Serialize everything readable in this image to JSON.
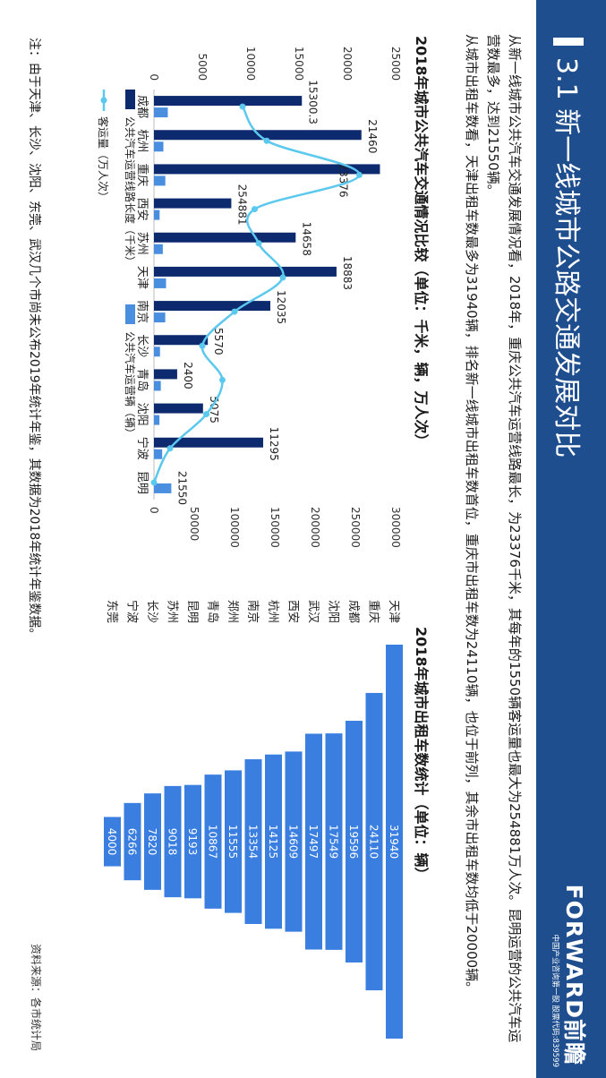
{
  "header": {
    "title": "3.1 新一线城市公路交通发展对比",
    "logo": "FORWARD前瞻",
    "logo_subtitle": "中国产业咨询第一股 股票代码:839599"
  },
  "paragraphs": [
    "从新一线城市公共汽车交通发展情况看，2018年，重庆公共汽车运营线路最长，为23376千米，其每年的1550辆客运量也最大为254881万人次。昆明运营的公共汽车运营数最多，达到21550辆。",
    "从城市出租车数看，天津出租车数最多为31940辆，排名新一线城市出租车数首位，重庆市出租车数为24110辆，也位于前列，其余市出租车数均低于20000辆。"
  ],
  "footnote": "注：由于天津、长沙、沈阳、东莞、武汉几个市尚未公布2019年统计年鉴，其数据为2018年统计年鉴数据。",
  "source": "资料来源：各市统计局",
  "colors": {
    "header_bg": "#1f4e8f",
    "bar_dark": "#0d2a6e",
    "bar_light": "#4a8ee0",
    "line": "#5bc8ee",
    "taxi_bar": "#3a7fe0"
  },
  "chart_data": [
    {
      "type": "bar",
      "title": "2018年城市公共汽车交通情况比较（单位：千米，辆，万人次）",
      "categories": [
        "成都",
        "杭州",
        "重庆",
        "西安",
        "苏州",
        "天津",
        "南京",
        "长沙",
        "青岛",
        "沈阳",
        "宁波",
        "昆明"
      ],
      "series": [
        {
          "name": "公共汽车运营线路长度（千米）",
          "axis": "left",
          "values": [
            15300.3,
            21460,
            23376,
            8000,
            14658,
            18883,
            12035,
            5570,
            2400,
            5075,
            11295,
            0
          ]
        },
        {
          "name": "公共汽车运营辆（辆）",
          "axis": "right",
          "values": [
            17200,
            11700,
            14100,
            7000,
            11000,
            15000,
            14000,
            7500,
            8500,
            6800,
            10200,
            21550
          ]
        },
        {
          "name": "客运量（万人次）",
          "axis": "right",
          "type": "line",
          "values": [
            110000,
            140000,
            254881,
            125000,
            130000,
            160000,
            100000,
            60000,
            85000,
            65000,
            20000,
            0
          ]
        }
      ],
      "data_labels": [
        "15300.3",
        "21460",
        "23376",
        "254881",
        "14658",
        "18883",
        "12035",
        "5570",
        "2400",
        "5075",
        "11295",
        "21550"
      ],
      "yticks_left": [
        "0",
        "5000",
        "10000",
        "15000",
        "20000",
        "25000"
      ],
      "yticks_right": [
        "0",
        "50000",
        "100000",
        "150000",
        "200000",
        "250000",
        "300000"
      ],
      "ylim_left": [
        0,
        25000
      ],
      "ylim_right": [
        0,
        300000
      ],
      "legend": [
        "公共汽车运营线路长度（千米）",
        "公共汽车运营辆（辆）",
        "客运量（万人次）"
      ],
      "legend_position": "bottom"
    },
    {
      "type": "bar",
      "orientation": "horizontal",
      "title": "2018年城市出租车数统计（单位：辆）",
      "categories": [
        "天津",
        "重庆",
        "成都",
        "沈阳",
        "武汉",
        "西安",
        "杭州",
        "南京",
        "郑州",
        "青岛",
        "昆明",
        "苏州",
        "长沙",
        "宁波",
        "东莞"
      ],
      "values": [
        31940,
        24110,
        19596,
        17549,
        17497,
        14609,
        14125,
        13354,
        11555,
        10867,
        9193,
        9018,
        7820,
        6266,
        4000
      ],
      "value_labels": [
        "31940",
        "24110",
        "19596",
        "17549",
        "17497",
        "14609",
        "14125",
        "13354",
        "11555",
        "10867",
        "9193",
        "9018",
        "7820",
        "6266",
        "4000"
      ],
      "grid": false,
      "legend": false
    }
  ]
}
